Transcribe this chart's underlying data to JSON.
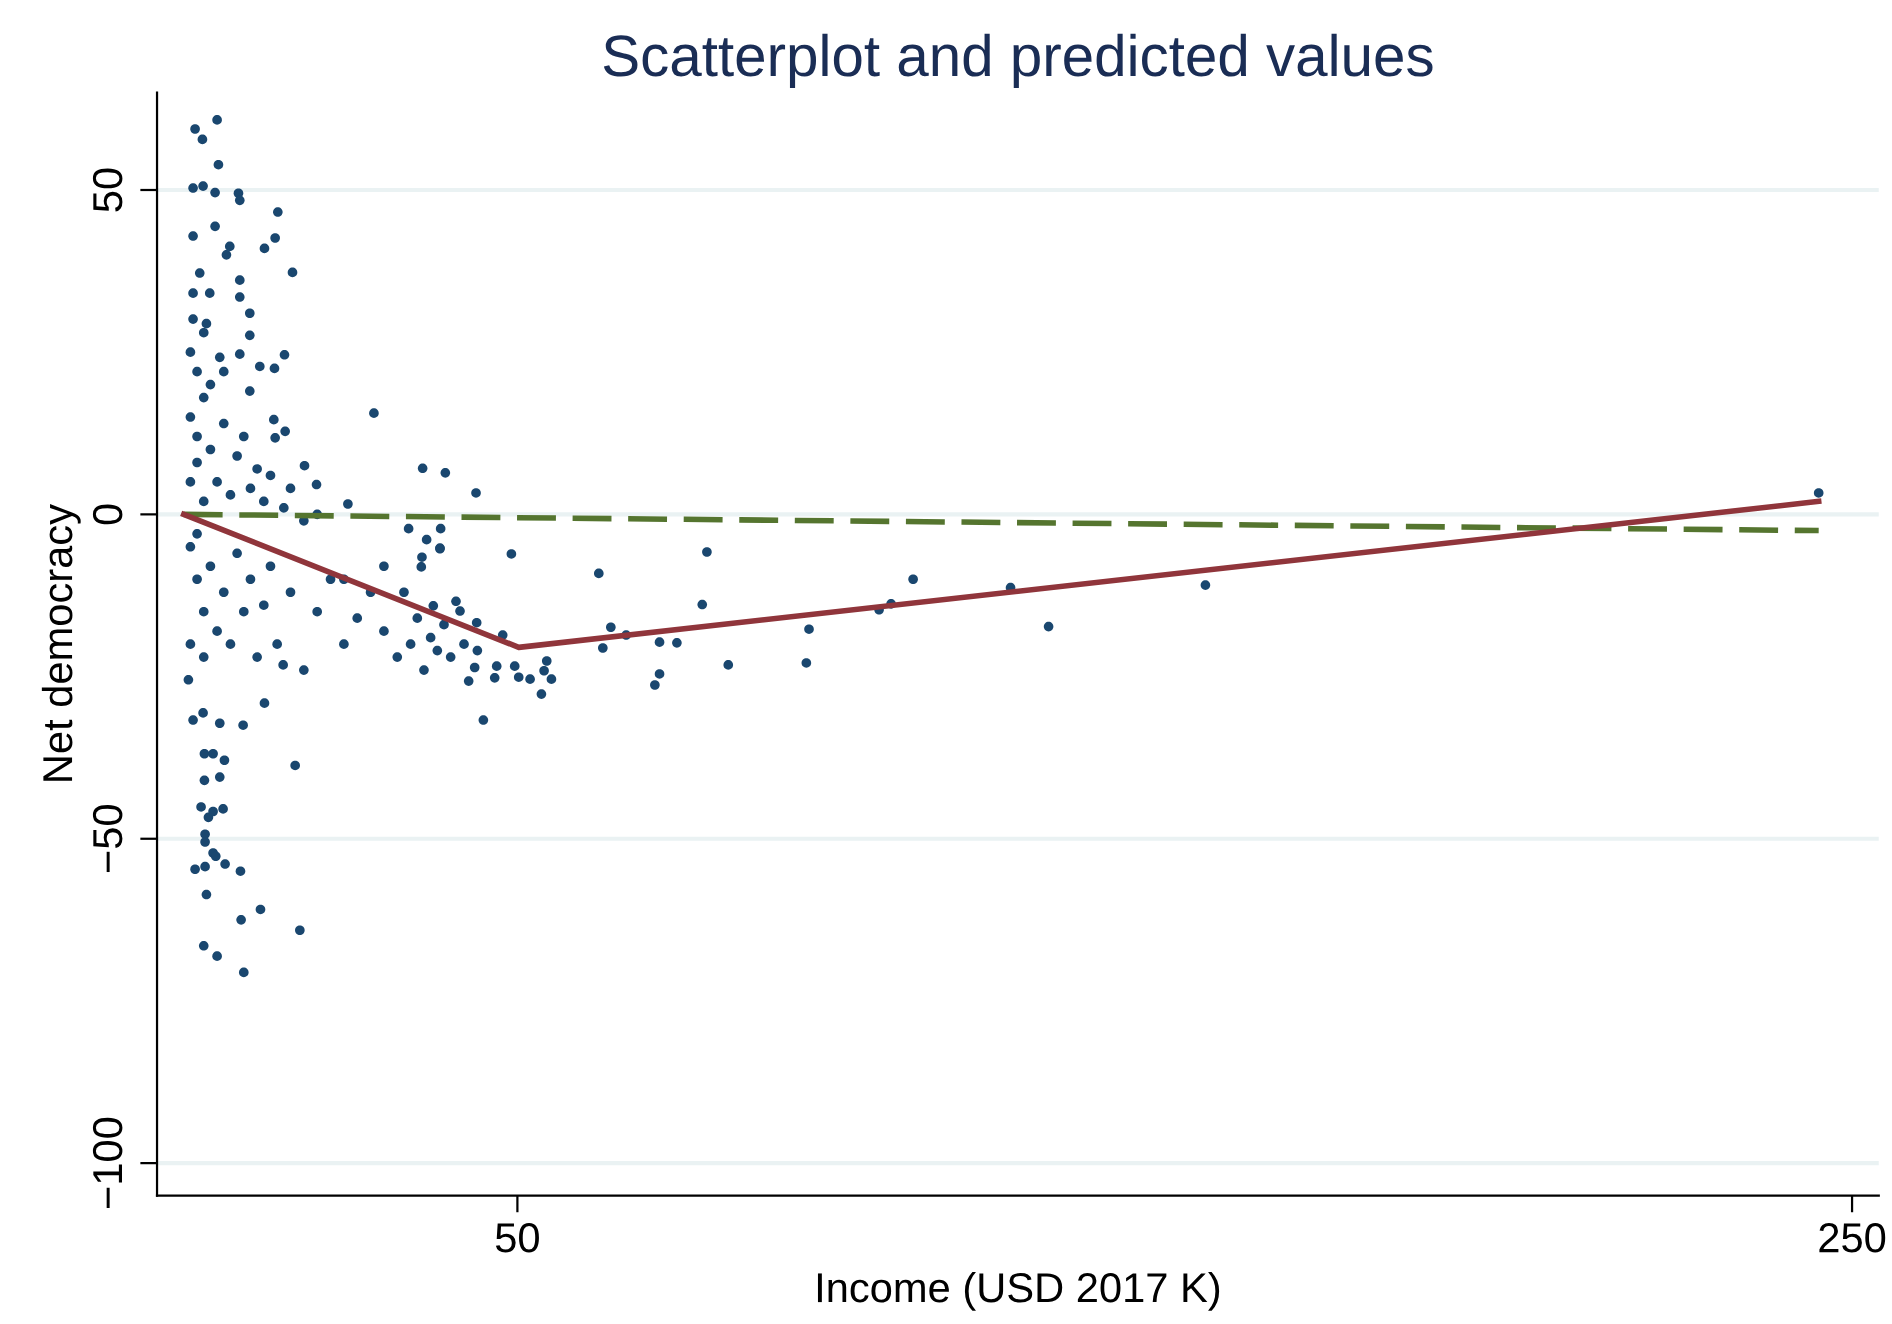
{
  "chart_data": {
    "type": "scatter",
    "title": "Scatterplot and predicted values",
    "xlabel": "Income (USD 2017 K)",
    "ylabel": "Net democracy",
    "xlim": [
      -4,
      254
    ],
    "ylim": [
      -105,
      65
    ],
    "xticks": [
      50,
      250
    ],
    "yticks": [
      50,
      0,
      {
        "value": -50,
        "label": "−50"
      },
      {
        "value": -100,
        "label": "−100"
      }
    ],
    "grid": "y",
    "legend": false,
    "series": [
      {
        "marker": "circle",
        "color": "#1a476f",
        "x": [
          1.7,
          5.0,
          2.8,
          5.2,
          1.4,
          2.9,
          4.7,
          8.2,
          8.4,
          14.1,
          13.7,
          12.1,
          16.3,
          1.4,
          4.7,
          6.9,
          6.4,
          1.4,
          2.4,
          3.9,
          8.4,
          8.4,
          9.9,
          9.9,
          1.4,
          3.4,
          8.4,
          15.1,
          11.4,
          13.6,
          5.4,
          9.9,
          13.5,
          13.7,
          15.2,
          28.5,
          18.1,
          35.8,
          39.2,
          43.8,
          24.6,
          49.1,
          33.7,
          36.4,
          38.4,
          1,
          2,
          3,
          4,
          1,
          2,
          5,
          6,
          7,
          8,
          3,
          10,
          12,
          15,
          18,
          20,
          9,
          11,
          13,
          16,
          2,
          4,
          1,
          3,
          6,
          0.7,
          1.4,
          2.9,
          5.4,
          8.9,
          12.1,
          14.9,
          44.9,
          16.7,
          3.1,
          4.4,
          6.1,
          3.1,
          5.4,
          2.6,
          3.7,
          4.4,
          5.9,
          3.2,
          3.2,
          4.4,
          4.8,
          1.7,
          3.2,
          6.2,
          8.5,
          3.4,
          8.6,
          11.5,
          17.4,
          3.0,
          5.0,
          9.0,
          1,
          2,
          3,
          4,
          5,
          1,
          2,
          6,
          7,
          8,
          3,
          9,
          10,
          12,
          11,
          14,
          13,
          16,
          18,
          20,
          22,
          24,
          19.9,
          62.2,
          78.4,
          77.7,
          109.3,
          106.0,
          104.2,
          123.9,
          129.6,
          93.7,
          93.3,
          81.6,
          70.6,
          71.3,
          73.9,
          71.3,
          64.0,
          62.8,
          66.3,
          53.6,
          55.1,
          51.9,
          50.2,
          54.4,
          54.0,
          49.6,
          42.7,
          43.6,
          46.9,
          46.6,
          47.8,
          43.9,
          40.8,
          41.4,
          37.4,
          30,
          32,
          34,
          36,
          38,
          40,
          28,
          26,
          24,
          30,
          33,
          35,
          37,
          39,
          42,
          44,
          38.5,
          38.4,
          35.7,
          35.6,
          153.1,
          245.0
        ],
        "values": [
          59.4,
          60.8,
          57.8,
          53.9,
          50.3,
          50.6,
          49.6,
          49.5,
          48.4,
          46.6,
          42.6,
          41.0,
          37.3,
          42.9,
          44.4,
          41.3,
          40,
          34.1,
          37.2,
          34.1,
          36.1,
          33.5,
          31.0,
          27.6,
          30.1,
          29.4,
          24.7,
          24.6,
          22.8,
          22.5,
          24.2,
          19.0,
          14.6,
          11.8,
          12.8,
          15.6,
          7.5,
          7.1,
          6.4,
          3.3,
          1.6,
          -6.1,
          -2.2,
          -3.9,
          -5.3,
          15,
          12,
          18,
          10,
          5,
          8,
          5,
          14,
          3,
          9,
          2,
          4,
          2,
          1,
          -1,
          0,
          12,
          7,
          6,
          4,
          22,
          20,
          25,
          28,
          22,
          -25.5,
          -31.7,
          -30.6,
          -32.2,
          -32.5,
          -29.1,
          -23.2,
          -31.7,
          -38.7,
          -36.9,
          -36.9,
          -37.9,
          -41,
          -40.5,
          -45.1,
          -46.7,
          -45.8,
          -45.4,
          -49.3,
          -50.5,
          -52.2,
          -52.7,
          -54.7,
          -54.3,
          -53.9,
          -55,
          -58.6,
          -62.5,
          -60.9,
          -64.1,
          -66.5,
          -68.1,
          -70.6,
          -5,
          -10,
          -15,
          -8,
          -18,
          -20,
          -3,
          -12,
          -20,
          -6,
          -22,
          -15,
          -10,
          -14,
          -22,
          -20,
          -8,
          -12,
          -24,
          -15,
          -10,
          -20,
          4.6,
          -9.1,
          -5.8,
          -13.9,
          -10.0,
          -13.8,
          -14.7,
          -11.3,
          -17.3,
          -17.7,
          -22.9,
          -23.2,
          -26.3,
          -24.6,
          -19.8,
          -19.7,
          -17.4,
          -20.6,
          -18.6,
          -27.7,
          -25.4,
          -25.4,
          -25.1,
          -22.6,
          -24.1,
          -23.4,
          -25.7,
          -23.6,
          -23.4,
          -25.2,
          -18.6,
          -16.7,
          -13.4,
          -14.9,
          -14.1,
          -18,
          -22,
          -20,
          -24,
          -21,
          -22,
          -12,
          -16,
          -10,
          -8,
          -12,
          -16,
          -19,
          -17,
          -20,
          -21,
          -2.2,
          -5.2,
          -6.6,
          -8.1,
          -10.9,
          3.3
        ]
      },
      {
        "type": "line",
        "marker": "none",
        "color": "#55752f",
        "line_style": "dashed",
        "x": [
          0,
          245
        ],
        "values": [
          0,
          -2.5
        ]
      },
      {
        "type": "line",
        "marker": "none",
        "color": "#90353b",
        "line_style": "solid",
        "x": [
          0,
          50.2,
          245
        ],
        "values": [
          0,
          -20.5,
          2.0
        ]
      }
    ]
  }
}
